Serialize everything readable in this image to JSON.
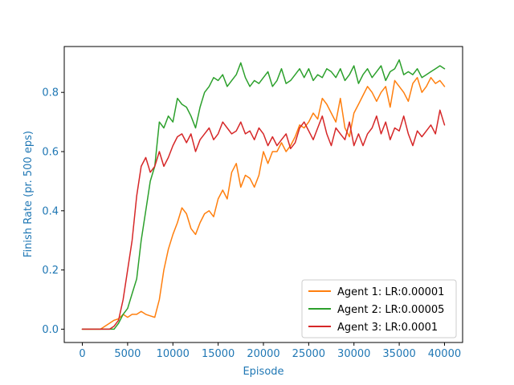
{
  "chart_data": {
    "type": "line",
    "title": "",
    "xlabel": "Episode",
    "ylabel": "Finish Rate (pr. 500 eps)",
    "xlim": [
      -2000,
      42000
    ],
    "ylim": [
      -0.045,
      0.955
    ],
    "xticks": [
      0,
      5000,
      10000,
      15000,
      20000,
      25000,
      30000,
      35000,
      40000
    ],
    "yticks": [
      0.0,
      0.2,
      0.4,
      0.6,
      0.8
    ],
    "xtick_labels": [
      "0",
      "5000",
      "10000",
      "15000",
      "20000",
      "25000",
      "30000",
      "35000",
      "40000"
    ],
    "ytick_labels": [
      "0.0",
      "0.2",
      "0.4",
      "0.6",
      "0.8"
    ],
    "axis_color": "#1f77b4",
    "grid": false,
    "legend_position": "lower-right",
    "series": [
      {
        "name": "Agent 1: LR:0.00001",
        "color": "#ff7f0e",
        "x": [
          0,
          1000,
          2000,
          3000,
          3500,
          4000,
          4500,
          5000,
          5500,
          6000,
          6500,
          7000,
          7500,
          8000,
          8500,
          9000,
          9500,
          10000,
          10500,
          11000,
          11500,
          12000,
          12500,
          13000,
          13500,
          14000,
          14500,
          15000,
          15500,
          16000,
          16500,
          17000,
          17500,
          18000,
          18500,
          19000,
          19500,
          20000,
          20500,
          21000,
          21500,
          22000,
          22500,
          23000,
          23500,
          24000,
          24500,
          25000,
          25500,
          26000,
          26500,
          27000,
          27500,
          28000,
          28500,
          29000,
          29500,
          30000,
          30500,
          31000,
          31500,
          32000,
          32500,
          33000,
          33500,
          34000,
          34500,
          35000,
          35500,
          36000,
          36500,
          37000,
          37500,
          38000,
          38500,
          39000,
          39500,
          40000
        ],
        "values": [
          0.0,
          0.0,
          0.0,
          0.02,
          0.03,
          0.035,
          0.05,
          0.04,
          0.05,
          0.05,
          0.06,
          0.05,
          0.045,
          0.04,
          0.1,
          0.2,
          0.27,
          0.32,
          0.36,
          0.41,
          0.39,
          0.34,
          0.32,
          0.36,
          0.39,
          0.4,
          0.38,
          0.44,
          0.47,
          0.44,
          0.53,
          0.56,
          0.48,
          0.52,
          0.51,
          0.48,
          0.52,
          0.6,
          0.56,
          0.6,
          0.6,
          0.63,
          0.6,
          0.62,
          0.65,
          0.69,
          0.68,
          0.7,
          0.73,
          0.71,
          0.78,
          0.76,
          0.73,
          0.7,
          0.78,
          0.68,
          0.65,
          0.73,
          0.76,
          0.79,
          0.82,
          0.8,
          0.77,
          0.8,
          0.82,
          0.75,
          0.84,
          0.82,
          0.8,
          0.77,
          0.83,
          0.85,
          0.8,
          0.82,
          0.85,
          0.83,
          0.84,
          0.82
        ]
      },
      {
        "name": "Agent 2: LR:0.00005",
        "color": "#2ca02c",
        "x": [
          0,
          1000,
          2000,
          3000,
          3500,
          4000,
          4500,
          5000,
          5500,
          6000,
          6500,
          7000,
          7500,
          8000,
          8500,
          9000,
          9500,
          10000,
          10500,
          11000,
          11500,
          12000,
          12500,
          13000,
          13500,
          14000,
          14500,
          15000,
          15500,
          16000,
          16500,
          17000,
          17500,
          18000,
          18500,
          19000,
          19500,
          20000,
          20500,
          21000,
          21500,
          22000,
          22500,
          23000,
          23500,
          24000,
          24500,
          25000,
          25500,
          26000,
          26500,
          27000,
          27500,
          28000,
          28500,
          29000,
          29500,
          30000,
          30500,
          31000,
          31500,
          32000,
          32500,
          33000,
          33500,
          34000,
          34500,
          35000,
          35500,
          36000,
          36500,
          37000,
          37500,
          38000,
          38500,
          39000,
          39500,
          40000
        ],
        "values": [
          0.0,
          0.0,
          0.0,
          0.0,
          0.0,
          0.02,
          0.05,
          0.07,
          0.12,
          0.17,
          0.3,
          0.4,
          0.5,
          0.55,
          0.7,
          0.68,
          0.72,
          0.7,
          0.78,
          0.76,
          0.75,
          0.72,
          0.68,
          0.75,
          0.8,
          0.82,
          0.85,
          0.84,
          0.86,
          0.82,
          0.84,
          0.86,
          0.9,
          0.85,
          0.82,
          0.84,
          0.83,
          0.85,
          0.87,
          0.82,
          0.84,
          0.88,
          0.83,
          0.84,
          0.86,
          0.88,
          0.85,
          0.88,
          0.84,
          0.86,
          0.85,
          0.88,
          0.87,
          0.85,
          0.88,
          0.84,
          0.86,
          0.89,
          0.83,
          0.86,
          0.88,
          0.85,
          0.87,
          0.89,
          0.84,
          0.87,
          0.88,
          0.91,
          0.86,
          0.87,
          0.86,
          0.88,
          0.85,
          0.86,
          0.87,
          0.88,
          0.89,
          0.88
        ]
      },
      {
        "name": "Agent 3: LR:0.0001",
        "color": "#d62728",
        "x": [
          0,
          1000,
          2000,
          3000,
          3500,
          4000,
          4500,
          5000,
          5500,
          6000,
          6500,
          7000,
          7500,
          8000,
          8500,
          9000,
          9500,
          10000,
          10500,
          11000,
          11500,
          12000,
          12500,
          13000,
          13500,
          14000,
          14500,
          15000,
          15500,
          16000,
          16500,
          17000,
          17500,
          18000,
          18500,
          19000,
          19500,
          20000,
          20500,
          21000,
          21500,
          22000,
          22500,
          23000,
          23500,
          24000,
          24500,
          25000,
          25500,
          26000,
          26500,
          27000,
          27500,
          28000,
          28500,
          29000,
          29500,
          30000,
          30500,
          31000,
          31500,
          32000,
          32500,
          33000,
          33500,
          34000,
          34500,
          35000,
          35500,
          36000,
          36500,
          37000,
          37500,
          38000,
          38500,
          39000,
          39500,
          40000
        ],
        "values": [
          0.0,
          0.0,
          0.0,
          0.0,
          0.01,
          0.03,
          0.1,
          0.2,
          0.3,
          0.45,
          0.55,
          0.58,
          0.53,
          0.55,
          0.6,
          0.55,
          0.58,
          0.62,
          0.65,
          0.66,
          0.63,
          0.66,
          0.6,
          0.64,
          0.66,
          0.68,
          0.64,
          0.66,
          0.7,
          0.68,
          0.66,
          0.67,
          0.7,
          0.66,
          0.67,
          0.64,
          0.68,
          0.66,
          0.62,
          0.65,
          0.62,
          0.64,
          0.66,
          0.61,
          0.63,
          0.68,
          0.7,
          0.67,
          0.64,
          0.68,
          0.72,
          0.66,
          0.62,
          0.68,
          0.66,
          0.64,
          0.7,
          0.62,
          0.66,
          0.62,
          0.66,
          0.68,
          0.72,
          0.66,
          0.7,
          0.64,
          0.68,
          0.67,
          0.72,
          0.66,
          0.62,
          0.67,
          0.65,
          0.67,
          0.69,
          0.66,
          0.74,
          0.69
        ]
      }
    ]
  }
}
